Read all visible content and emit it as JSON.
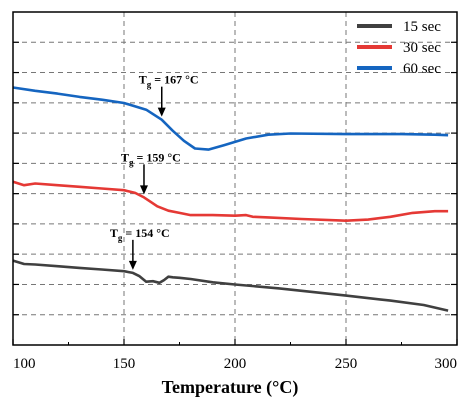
{
  "chart_data": {
    "type": "line",
    "xlabel": "Temperature (°C)",
    "ylabel": "",
    "xlim": [
      100,
      300
    ],
    "xticks": [
      100,
      150,
      200,
      250,
      300
    ],
    "grid": true,
    "legend_position": "top-right",
    "series": [
      {
        "name": "15 sec",
        "color": "#404040",
        "x": [
          100,
          105,
          110,
          120,
          130,
          140,
          150,
          154,
          157,
          160,
          163,
          166,
          168,
          170,
          172,
          175,
          180,
          190,
          200,
          220,
          250,
          270,
          285,
          296
        ],
        "y": [
          0.41,
          0.38,
          0.375,
          0.36,
          0.345,
          0.33,
          0.315,
          0.3,
          0.27,
          0.22,
          0.225,
          0.21,
          0.235,
          0.265,
          0.26,
          0.255,
          0.245,
          0.215,
          0.195,
          0.16,
          0.095,
          0.05,
          0.01,
          -0.04
        ]
      },
      {
        "name": "30 sec",
        "color": "#e53935",
        "x": [
          100,
          105,
          110,
          120,
          130,
          140,
          150,
          155,
          159,
          162,
          165,
          170,
          175,
          180,
          190,
          200,
          205,
          208,
          215,
          230,
          250,
          260,
          270,
          280,
          290,
          296
        ],
        "y": [
          1.12,
          1.09,
          1.105,
          1.09,
          1.075,
          1.06,
          1.045,
          1.02,
          0.98,
          0.94,
          0.9,
          0.86,
          0.84,
          0.82,
          0.82,
          0.815,
          0.82,
          0.805,
          0.8,
          0.785,
          0.77,
          0.78,
          0.805,
          0.84,
          0.855,
          0.855
        ]
      },
      {
        "name": "60 sec",
        "color": "#1565c0",
        "x": [
          100,
          110,
          120,
          130,
          140,
          150,
          160,
          167,
          172,
          177,
          182,
          188,
          195,
          205,
          215,
          225,
          250,
          275,
          290,
          296
        ],
        "y": [
          1.97,
          1.94,
          1.915,
          1.885,
          1.86,
          1.83,
          1.77,
          1.68,
          1.58,
          1.49,
          1.42,
          1.41,
          1.45,
          1.51,
          1.545,
          1.555,
          1.55,
          1.55,
          1.545,
          1.54
        ]
      }
    ],
    "annotations": [
      {
        "label_main": "T",
        "label_sub": "g",
        "label_rest": " = 167 °C",
        "x": 167,
        "series": "60 sec"
      },
      {
        "label_main": "T",
        "label_sub": "g",
        "label_rest": " = 159 °C",
        "x": 159,
        "series": "30 sec"
      },
      {
        "label_main": "T",
        "label_sub": "g",
        "label_rest": " = 154 °C",
        "x": 154,
        "series": "15 sec"
      }
    ]
  }
}
